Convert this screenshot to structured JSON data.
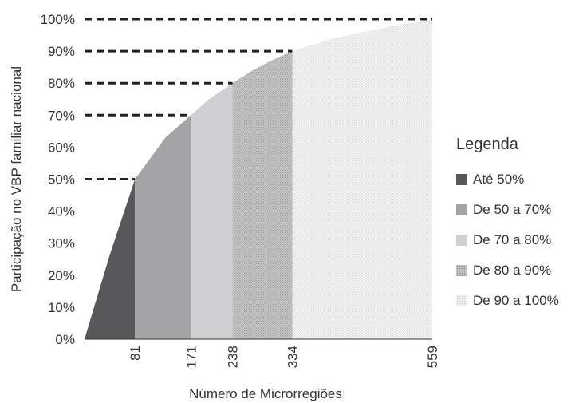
{
  "chart_data": {
    "type": "area",
    "ylabel": "Participação no VBP familiar nacional",
    "xlabel": "Número de Microrregiões",
    "xlim": [
      0,
      559
    ],
    "ylim": [
      0,
      100
    ],
    "y_ticks": [
      "0%",
      "10%",
      "20%",
      "30%",
      "40%",
      "50%",
      "60%",
      "70%",
      "80%",
      "90%",
      "100%"
    ],
    "x_ticks": [
      "81",
      "171",
      "238",
      "334",
      "559"
    ],
    "x_tick_values": [
      81,
      171,
      238,
      334,
      559
    ],
    "curve": {
      "x": [
        0,
        40,
        81,
        100,
        130,
        171,
        200,
        238,
        270,
        300,
        334,
        400,
        450,
        500,
        559
      ],
      "y": [
        0,
        26,
        50,
        55,
        63,
        70,
        75,
        80,
        84,
        87,
        90,
        94,
        96,
        98,
        100
      ]
    },
    "reference_lines": [
      {
        "x": 81,
        "y": 50
      },
      {
        "x": 171,
        "y": 70
      },
      {
        "x": 238,
        "y": 80
      },
      {
        "x": 334,
        "y": 90
      },
      {
        "x": 559,
        "y": 100
      }
    ],
    "series": [
      {
        "name": "Até 50%",
        "x_range": [
          0,
          81
        ],
        "color": "#58585a"
      },
      {
        "name": "De 50 a 70%",
        "x_range": [
          81,
          171
        ],
        "color": "#a3a4a6"
      },
      {
        "name": "De 70 a 80%",
        "x_range": [
          171,
          238
        ],
        "color": "#cfd0d1"
      },
      {
        "name": "De 80 a 90%",
        "x_range": [
          238,
          334
        ],
        "color": "#bdbdbd"
      },
      {
        "name": "De 90 a 100%",
        "x_range": [
          334,
          559
        ],
        "color": "#ececec"
      }
    ],
    "legend": {
      "title": "Legenda",
      "placement": "right"
    },
    "grid": false
  }
}
